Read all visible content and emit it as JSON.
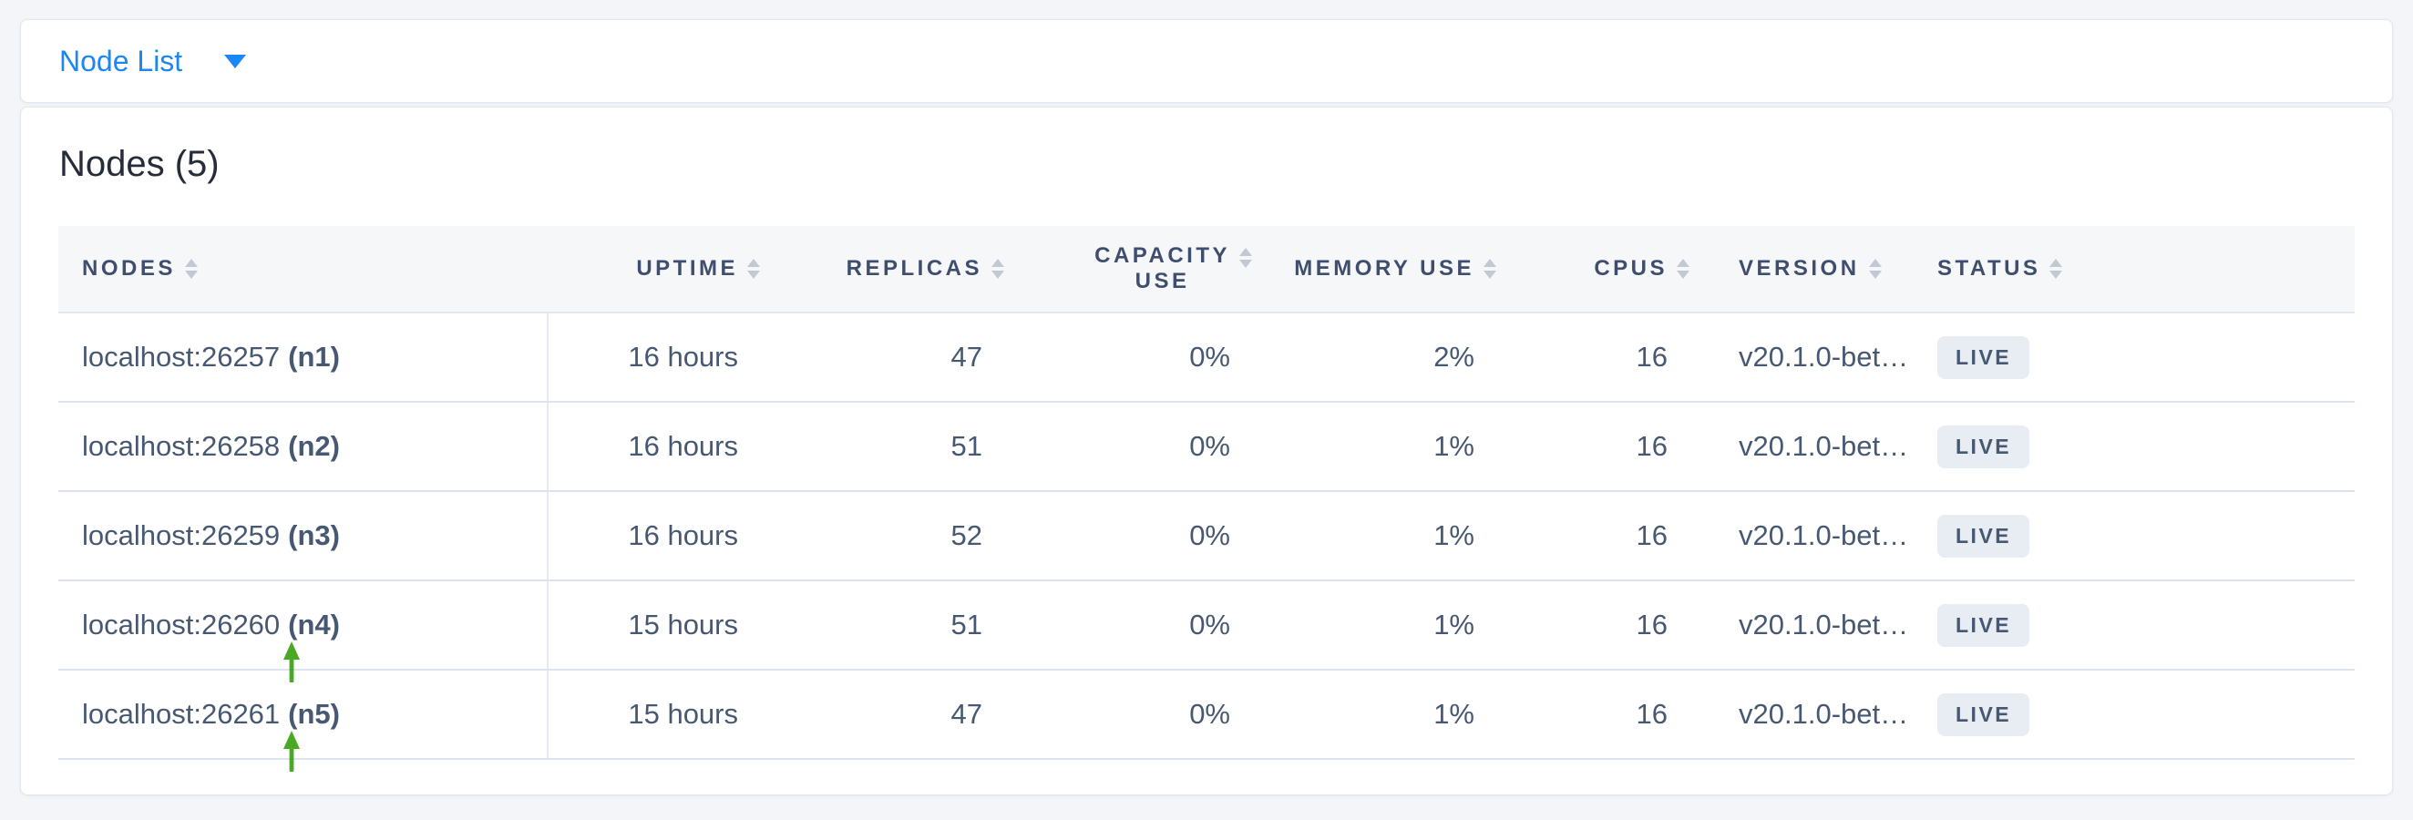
{
  "header": {
    "dropdown_label": "Node List"
  },
  "main": {
    "heading": "Nodes (5)"
  },
  "table": {
    "columns": [
      {
        "key": "nodes",
        "label": "NODES"
      },
      {
        "key": "uptime",
        "label": "UPTIME"
      },
      {
        "key": "replicas",
        "label": "REPLICAS"
      },
      {
        "key": "capacity",
        "label": "CAPACITY\nUSE"
      },
      {
        "key": "memory",
        "label": "MEMORY USE"
      },
      {
        "key": "cpus",
        "label": "CPUS"
      },
      {
        "key": "version",
        "label": "VERSION"
      },
      {
        "key": "status",
        "label": "STATUS"
      }
    ],
    "rows": [
      {
        "address": "localhost:26257",
        "node_id": "(n1)",
        "uptime": "16 hours",
        "replicas": "47",
        "capacity": "0%",
        "memory": "2%",
        "cpus": "16",
        "version": "v20.1.0-bet…",
        "status": "LIVE"
      },
      {
        "address": "localhost:26258",
        "node_id": "(n2)",
        "uptime": "16 hours",
        "replicas": "51",
        "capacity": "0%",
        "memory": "1%",
        "cpus": "16",
        "version": "v20.1.0-bet…",
        "status": "LIVE"
      },
      {
        "address": "localhost:26259",
        "node_id": "(n3)",
        "uptime": "16 hours",
        "replicas": "52",
        "capacity": "0%",
        "memory": "1%",
        "cpus": "16",
        "version": "v20.1.0-bet…",
        "status": "LIVE"
      },
      {
        "address": "localhost:26260",
        "node_id": "(n4)",
        "uptime": "15 hours",
        "replicas": "51",
        "capacity": "0%",
        "memory": "1%",
        "cpus": "16",
        "version": "v20.1.0-bet…",
        "status": "LIVE"
      },
      {
        "address": "localhost:26261",
        "node_id": "(n5)",
        "uptime": "15 hours",
        "replicas": "47",
        "capacity": "0%",
        "memory": "1%",
        "cpus": "16",
        "version": "v20.1.0-bet…",
        "status": "LIVE"
      }
    ]
  },
  "icons": {
    "dropdown": "chevron-down-icon",
    "sort": "sort-updown-icon",
    "annotation": "up-arrow-icon"
  },
  "annotations": {
    "arrows": [
      {
        "icon": "up-arrow-icon",
        "points_at": "(n4)"
      },
      {
        "icon": "up-arrow-icon",
        "points_at": "(n5)"
      }
    ]
  },
  "colors": {
    "accent_blue": "#1a87f2",
    "badge_bg": "#e8ecf3",
    "annotation_green": "#4aa824",
    "header_text": "#3f4e6e",
    "cell_text": "#475872",
    "page_bg": "#f3f5f9"
  }
}
